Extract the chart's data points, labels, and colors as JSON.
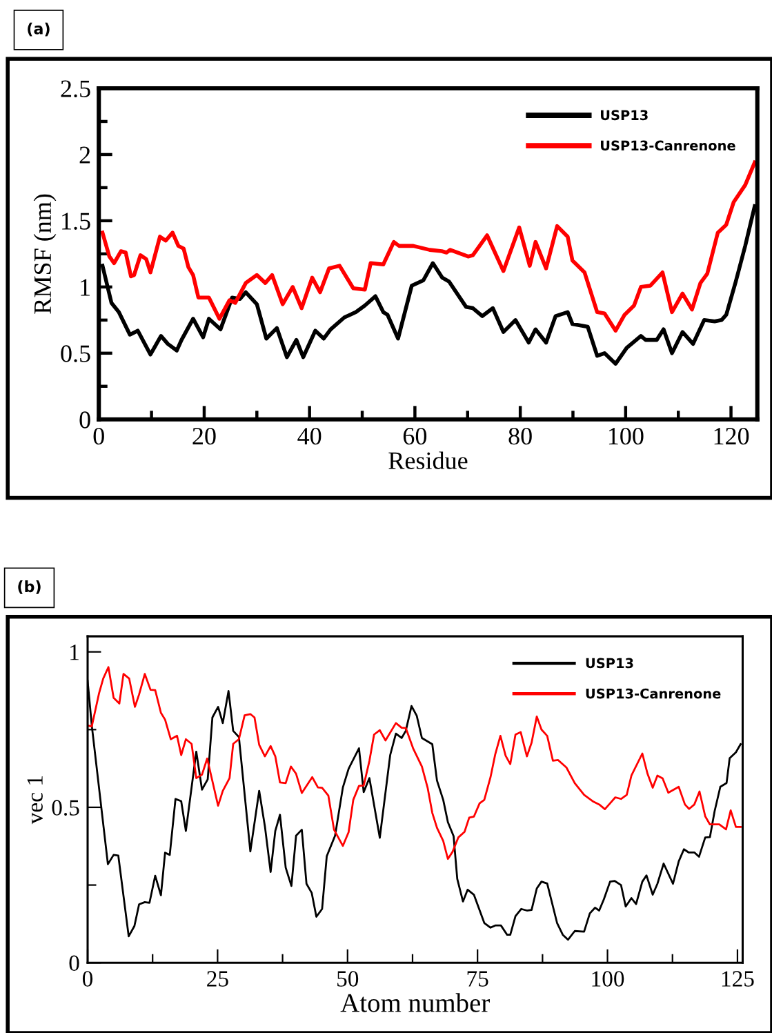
{
  "chart_data": [
    {
      "type": "line",
      "xlabel": "Residue",
      "ylabel": "RMSF (nm)",
      "annotations": [
        "(a)"
      ],
      "legend": "top right",
      "grid": false,
      "xlim": [
        0,
        125
      ],
      "xticks": [
        0,
        {
          "value": 10,
          "label": null
        },
        20,
        {
          "value": 30,
          "label": null
        },
        40,
        {
          "value": 50,
          "label": null
        },
        60,
        {
          "value": 70,
          "label": null
        },
        80,
        {
          "value": 90,
          "label": null
        },
        100,
        {
          "value": 110,
          "label": null
        },
        120
      ],
      "ylim": [
        0,
        2.5
      ],
      "yticks": [
        0,
        {
          "value": 0.25,
          "label": null
        },
        0.5,
        {
          "value": 0.75,
          "label": null
        },
        1,
        {
          "value": 1.25,
          "label": null
        },
        1.5,
        {
          "value": 1.75,
          "label": null
        },
        2,
        {
          "value": 2.25,
          "label": null
        },
        2.5
      ],
      "series": [
        {
          "name": "USP13",
          "color": "#000000",
          "x": [
            0.7,
            2.4,
            3.8,
            5.9,
            7.4,
            9.8,
            11.8,
            13.1,
            14.8,
            15.7,
            17.9,
            19.8,
            20.9,
            23.1,
            25.3,
            26.8,
            27.9,
            30.0,
            31.8,
            33.8,
            35.7,
            37.5,
            38.8,
            41.1,
            42.7,
            44.0,
            46.6,
            48.8,
            50.5,
            52.5,
            54.0,
            54.8,
            56.8,
            59.4,
            61.6,
            63.4,
            65.2,
            66.5,
            69.7,
            71.0,
            72.8,
            74.8,
            76.8,
            79.1,
            81.6,
            82.9,
            84.9,
            86.7,
            89.0,
            89.9,
            92.8,
            94.6,
            96.0,
            98.1,
            100.2,
            102.9,
            103.8,
            105.9,
            107.2,
            108.8,
            110.8,
            112.8,
            114.9,
            116.9,
            118.2,
            119.1,
            120.9,
            122.7,
            124.5
          ],
          "values": [
            1.16,
            0.88,
            0.81,
            0.64,
            0.67,
            0.49,
            0.63,
            0.57,
            0.52,
            0.6,
            0.76,
            0.62,
            0.76,
            0.68,
            0.92,
            0.91,
            0.96,
            0.87,
            0.61,
            0.69,
            0.47,
            0.6,
            0.47,
            0.67,
            0.61,
            0.68,
            0.77,
            0.81,
            0.86,
            0.93,
            0.81,
            0.79,
            0.61,
            1.01,
            1.05,
            1.18,
            1.07,
            1.04,
            0.85,
            0.84,
            0.78,
            0.84,
            0.66,
            0.75,
            0.58,
            0.68,
            0.58,
            0.78,
            0.81,
            0.72,
            0.7,
            0.48,
            0.5,
            0.42,
            0.54,
            0.63,
            0.6,
            0.6,
            0.68,
            0.5,
            0.66,
            0.57,
            0.75,
            0.74,
            0.75,
            0.79,
            1.04,
            1.31,
            1.61
          ]
        },
        {
          "name": "USP13-Canrenone",
          "color": "#ff0000",
          "x": [
            0.7,
            2.0,
            2.9,
            4.2,
            5.1,
            6.1,
            6.7,
            7.9,
            9.0,
            9.8,
            11.6,
            12.7,
            14.0,
            15.1,
            16.1,
            17.0,
            17.9,
            18.9,
            20.9,
            22.9,
            24.8,
            25.9,
            27.9,
            30.0,
            31.6,
            32.9,
            34.9,
            36.8,
            38.5,
            40.5,
            42.0,
            43.7,
            45.7,
            48.3,
            50.5,
            51.6,
            54.0,
            56.0,
            57.0,
            59.7,
            62.8,
            65.1,
            66.0,
            66.7,
            70.1,
            71.0,
            73.7,
            76.8,
            79.8,
            81.8,
            82.9,
            84.9,
            87.0,
            89.0,
            89.9,
            92.2,
            94.6,
            96.0,
            98.1,
            99.8,
            101.6,
            102.9,
            104.7,
            107.0,
            108.8,
            110.8,
            112.6,
            114.2,
            115.5,
            117.5,
            119.1,
            120.5,
            122.7,
            124.5
          ],
          "values": [
            1.41,
            1.23,
            1.18,
            1.27,
            1.26,
            1.08,
            1.09,
            1.24,
            1.21,
            1.11,
            1.38,
            1.35,
            1.41,
            1.31,
            1.29,
            1.15,
            1.09,
            0.92,
            0.92,
            0.76,
            0.9,
            0.88,
            1.03,
            1.09,
            1.03,
            1.09,
            0.87,
            1.0,
            0.84,
            1.07,
            0.96,
            1.14,
            1.16,
            0.99,
            0.98,
            1.18,
            1.17,
            1.34,
            1.31,
            1.31,
            1.28,
            1.27,
            1.26,
            1.28,
            1.23,
            1.24,
            1.39,
            1.12,
            1.45,
            1.16,
            1.34,
            1.14,
            1.46,
            1.38,
            1.2,
            1.11,
            0.81,
            0.8,
            0.67,
            0.79,
            0.86,
            1.0,
            1.01,
            1.11,
            0.81,
            0.95,
            0.83,
            1.03,
            1.1,
            1.41,
            1.47,
            1.64,
            1.77,
            1.94
          ]
        }
      ]
    },
    {
      "type": "line",
      "xlabel": "Atom number",
      "ylabel": "vec 1",
      "annotations": [
        "(b)"
      ],
      "legend": "top right",
      "grid": false,
      "xlim": [
        0,
        126
      ],
      "xticks": [
        0,
        {
          "value": 12.5,
          "label": null
        },
        25,
        {
          "value": 37.5,
          "label": null
        },
        50,
        {
          "value": 62.5,
          "label": null
        },
        75,
        {
          "value": 87.5,
          "label": null
        },
        100,
        {
          "value": 112.5,
          "label": null
        },
        125
      ],
      "ylim": [
        0,
        1.05
      ],
      "yticks": [
        0,
        {
          "value": 0.25,
          "label": null
        },
        0.5,
        {
          "value": 0.75,
          "label": null
        },
        1
      ],
      "series": [
        {
          "name": "USP13",
          "color": "#000000",
          "x": [
            0,
            0.8,
            3.9,
            5.0,
            5.9,
            7.9,
            9.0,
            9.9,
            11.0,
            11.9,
            13.0,
            14.1,
            14.9,
            15.8,
            16.9,
            18.0,
            18.9,
            20.9,
            22.0,
            23.1,
            24.0,
            25.1,
            26.0,
            27.1,
            28.0,
            29.1,
            31.3,
            33.0,
            34.1,
            35.2,
            36.1,
            37.0,
            38.1,
            39.2,
            40.1,
            41.2,
            42.1,
            43.1,
            44.0,
            45.1,
            46.0,
            47.6,
            49.1,
            50.2,
            52.2,
            53.1,
            54.2,
            56.2,
            58.2,
            59.3,
            60.4,
            61.2,
            62.3,
            63.3,
            64.3,
            66.3,
            67.2,
            68.4,
            69.3,
            70.4,
            71.1,
            72.2,
            73.1,
            74.3,
            76.3,
            77.5,
            78.4,
            79.5,
            80.7,
            81.3,
            82.3,
            83.4,
            84.5,
            85.4,
            86.4,
            87.3,
            88.4,
            90.3,
            91.4,
            92.4,
            93.7,
            95.5,
            96.6,
            97.6,
            98.4,
            99.3,
            100.5,
            101.4,
            102.6,
            103.5,
            104.6,
            105.5,
            106.7,
            107.5,
            108.7,
            109.6,
            110.8,
            112.6,
            113.7,
            114.7,
            115.6,
            116.7,
            117.6,
            118.8,
            119.7,
            120.6,
            121.7,
            122.9,
            123.5,
            124.7,
            125.6
          ],
          "values": [
            0.907,
            0.763,
            0.317,
            0.347,
            0.345,
            0.085,
            0.118,
            0.188,
            0.195,
            0.193,
            0.28,
            0.217,
            0.354,
            0.347,
            0.527,
            0.52,
            0.424,
            0.679,
            0.557,
            0.59,
            0.789,
            0.823,
            0.771,
            0.874,
            0.746,
            0.726,
            0.358,
            0.553,
            0.439,
            0.292,
            0.424,
            0.476,
            0.306,
            0.247,
            0.409,
            0.428,
            0.254,
            0.225,
            0.148,
            0.173,
            0.343,
            0.409,
            0.564,
            0.624,
            0.69,
            0.549,
            0.594,
            0.402,
            0.668,
            0.737,
            0.723,
            0.746,
            0.826,
            0.795,
            0.723,
            0.703,
            0.586,
            0.524,
            0.452,
            0.407,
            0.27,
            0.197,
            0.235,
            0.219,
            0.128,
            0.113,
            0.12,
            0.12,
            0.09,
            0.09,
            0.15,
            0.173,
            0.168,
            0.17,
            0.239,
            0.261,
            0.255,
            0.128,
            0.09,
            0.074,
            0.102,
            0.1,
            0.159,
            0.177,
            0.168,
            0.204,
            0.261,
            0.263,
            0.25,
            0.181,
            0.208,
            0.189,
            0.261,
            0.281,
            0.219,
            0.254,
            0.319,
            0.254,
            0.326,
            0.365,
            0.355,
            0.355,
            0.341,
            0.403,
            0.404,
            0.487,
            0.566,
            0.578,
            0.658,
            0.677,
            0.703
          ]
        },
        {
          "name": "USP13-Canrenone",
          "color": "#ff0000",
          "x": [
            0,
            0.8,
            2.2,
            3.0,
            4.0,
            5.0,
            6.1,
            6.9,
            8.0,
            9.1,
            9.9,
            11.0,
            12.1,
            13.0,
            14.1,
            14.9,
            16.0,
            17.2,
            18.0,
            18.9,
            20.0,
            20.9,
            22.0,
            23.0,
            25.1,
            26.0,
            27.3,
            28.0,
            29.1,
            30.2,
            31.3,
            32.1,
            33.0,
            34.1,
            35.2,
            36.1,
            37.0,
            38.1,
            39.1,
            40.1,
            41.2,
            43.2,
            44.3,
            45.1,
            46.3,
            47.4,
            49.1,
            50.2,
            51.1,
            52.2,
            53.1,
            54.2,
            55.1,
            56.2,
            57.3,
            59.3,
            60.4,
            61.2,
            62.6,
            64.3,
            65.4,
            66.3,
            67.2,
            68.4,
            69.3,
            70.2,
            71.3,
            72.5,
            73.4,
            74.3,
            75.4,
            76.3,
            77.5,
            78.4,
            79.4,
            80.4,
            81.3,
            82.3,
            83.3,
            84.5,
            85.4,
            86.4,
            87.3,
            88.4,
            89.5,
            90.5,
            92.1,
            93.7,
            95.5,
            97.3,
            98.5,
            99.5,
            100.5,
            101.5,
            102.6,
            103.7,
            104.6,
            106.7,
            107.7,
            108.7,
            109.6,
            110.6,
            111.7,
            113.7,
            114.9,
            115.7,
            116.7,
            117.7,
            118.8,
            119.7,
            121.5,
            122.8,
            123.7,
            124.7,
            125.6
          ],
          "values": [
            0.763,
            0.76,
            0.867,
            0.914,
            0.951,
            0.852,
            0.834,
            0.929,
            0.914,
            0.823,
            0.863,
            0.929,
            0.878,
            0.877,
            0.804,
            0.782,
            0.719,
            0.73,
            0.668,
            0.719,
            0.704,
            0.594,
            0.605,
            0.657,
            0.505,
            0.553,
            0.594,
            0.704,
            0.719,
            0.796,
            0.8,
            0.789,
            0.701,
            0.664,
            0.697,
            0.664,
            0.58,
            0.578,
            0.631,
            0.608,
            0.546,
            0.597,
            0.564,
            0.563,
            0.538,
            0.428,
            0.376,
            0.42,
            0.524,
            0.569,
            0.57,
            0.649,
            0.734,
            0.748,
            0.715,
            0.771,
            0.756,
            0.755,
            0.69,
            0.631,
            0.563,
            0.482,
            0.434,
            0.392,
            0.334,
            0.357,
            0.403,
            0.421,
            0.467,
            0.47,
            0.513,
            0.524,
            0.597,
            0.67,
            0.73,
            0.666,
            0.639,
            0.734,
            0.742,
            0.664,
            0.708,
            0.792,
            0.75,
            0.73,
            0.65,
            0.652,
            0.628,
            0.578,
            0.54,
            0.518,
            0.508,
            0.494,
            0.513,
            0.532,
            0.527,
            0.54,
            0.602,
            0.673,
            0.608,
            0.563,
            0.602,
            0.593,
            0.547,
            0.566,
            0.509,
            0.495,
            0.509,
            0.551,
            0.471,
            0.445,
            0.445,
            0.429,
            0.49,
            0.437,
            0.437
          ]
        }
      ]
    }
  ]
}
